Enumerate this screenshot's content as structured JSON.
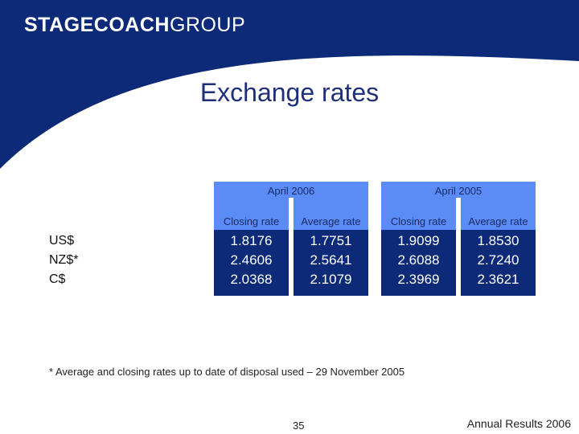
{
  "header": {
    "brand_main": "STAGECOACH",
    "brand_group": "GROUP"
  },
  "title": "Exchange rates",
  "table": {
    "periods": [
      "April 2006",
      "April 2005"
    ],
    "columns": [
      "Closing rate",
      "Average rate",
      "Closing rate",
      "Average rate"
    ],
    "rows": [
      {
        "label": "US$",
        "values": [
          "1.8176",
          "1.7751",
          "1.9099",
          "1.8530"
        ]
      },
      {
        "label": "NZ$*",
        "values": [
          "2.4606",
          "2.5641",
          "2.6088",
          "2.7240"
        ]
      },
      {
        "label": "C$",
        "values": [
          "2.0368",
          "2.1079",
          "2.3969",
          "2.3621"
        ]
      }
    ]
  },
  "footnote": "* Average and closing rates up to date of disposal used – 29 November 2005",
  "footer": {
    "page_number": "35",
    "label": "Annual Results 2006"
  },
  "colors": {
    "navy": "#0c2a78",
    "light_blue": "#5b8cf5",
    "title_blue": "#1f2f7a"
  }
}
